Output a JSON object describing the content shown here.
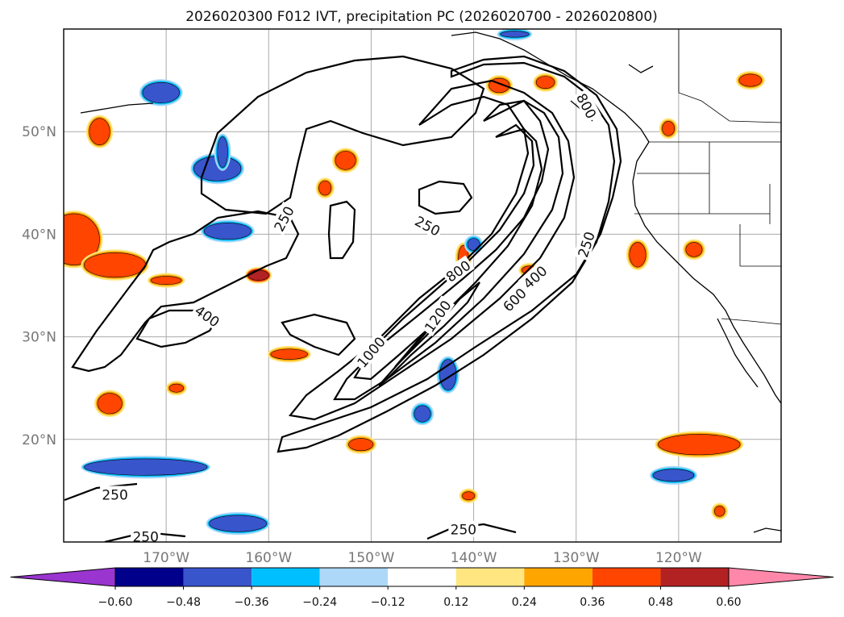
{
  "chart_data": {
    "type": "map-contour",
    "title": "2026020300 F012 IVT, precipitation PC (2026020700 - 2026020800)",
    "map_extent": {
      "lon_min": -180,
      "lon_max": -110,
      "lat_min": 10,
      "lat_max": 60
    },
    "latitude_ticks": [
      {
        "value": 50,
        "label": "50°N"
      },
      {
        "value": 40,
        "label": "40°N"
      },
      {
        "value": 30,
        "label": "30°N"
      },
      {
        "value": 20,
        "label": "20°N"
      }
    ],
    "longitude_ticks": [
      {
        "value": -170,
        "label": "170°W"
      },
      {
        "value": -160,
        "label": "160°W"
      },
      {
        "value": -150,
        "label": "150°W"
      },
      {
        "value": -140,
        "label": "140°W"
      },
      {
        "value": -130,
        "label": "130°W"
      },
      {
        "value": -120,
        "label": "120°W"
      }
    ],
    "grid": true,
    "ivt_contour_levels": [
      250,
      400,
      600,
      800,
      1000,
      1200
    ],
    "contour_labels": [
      {
        "text": "250",
        "lon": -158.5,
        "lat": 41.5,
        "rotate": -62
      },
      {
        "text": "250",
        "lon": -144.5,
        "lat": 40.8,
        "rotate": 28
      },
      {
        "text": "250",
        "lon": -129.0,
        "lat": 39.0,
        "rotate": -72
      },
      {
        "text": "250",
        "lon": -175.0,
        "lat": 14.6,
        "rotate": 0
      },
      {
        "text": "250",
        "lon": -172.0,
        "lat": 10.5,
        "rotate": 0
      },
      {
        "text": "250",
        "lon": -141.0,
        "lat": 11.2,
        "rotate": 0
      },
      {
        "text": "400",
        "lon": -166.0,
        "lat": 32.0,
        "rotate": 35
      },
      {
        "text": "400",
        "lon": -134.0,
        "lat": 35.8,
        "rotate": -42
      },
      {
        "text": "600",
        "lon": -136.0,
        "lat": 33.6,
        "rotate": -45
      },
      {
        "text": "800",
        "lon": -141.5,
        "lat": 36.4,
        "rotate": -35
      },
      {
        "text": "800",
        "lon": -129.0,
        "lat": 52.5,
        "rotate": 62
      },
      {
        "text": "1000",
        "lon": -150.0,
        "lat": 28.5,
        "rotate": -50
      },
      {
        "text": "1200",
        "lon": -143.5,
        "lat": 32.0,
        "rotate": -55
      }
    ],
    "colorbar": {
      "boundaries": [
        -0.6,
        -0.48,
        -0.36,
        -0.24,
        -0.12,
        0.12,
        0.24,
        0.36,
        0.48,
        0.6
      ],
      "tick_labels": [
        "−0.60",
        "−0.48",
        "−0.36",
        "−0.24",
        "−0.12",
        "0.12",
        "0.24",
        "0.36",
        "0.48",
        "0.60"
      ],
      "colors": [
        "#9a35d0",
        "#00008b",
        "#3955cc",
        "#00bfff",
        "#add8f7",
        "#ffffff",
        "#ffe680",
        "#ffa500",
        "#ff4500",
        "#b22222",
        "#ff88aa"
      ],
      "extend": "both"
    },
    "precip_features": [
      {
        "lon": -158.0,
        "lat": 28.3,
        "rx": 1.8,
        "ry": 0.5,
        "color": "#ff4500"
      },
      {
        "lon": -170.0,
        "lat": 35.5,
        "rx": 1.5,
        "ry": 0.4,
        "color": "#ff4500"
      },
      {
        "lon": -175.5,
        "lat": 23.5,
        "rx": 1.2,
        "ry": 1.0,
        "color": "#ff4500"
      },
      {
        "lon": -179.0,
        "lat": 39.5,
        "rx": 2.5,
        "ry": 2.5,
        "color": "#ff4500"
      },
      {
        "lon": -175.0,
        "lat": 37.0,
        "rx": 3.0,
        "ry": 1.2,
        "color": "#ff4500"
      },
      {
        "lon": -176.5,
        "lat": 50.0,
        "rx": 1.0,
        "ry": 1.3,
        "color": "#ff4500"
      },
      {
        "lon": -152.5,
        "lat": 47.2,
        "rx": 1.0,
        "ry": 0.9,
        "color": "#ff4500"
      },
      {
        "lon": -137.5,
        "lat": 54.5,
        "rx": 1.0,
        "ry": 0.7,
        "color": "#ff4500"
      },
      {
        "lon": -133.0,
        "lat": 54.8,
        "rx": 0.9,
        "ry": 0.6,
        "color": "#ff4500"
      },
      {
        "lon": -121.0,
        "lat": 50.3,
        "rx": 0.6,
        "ry": 0.7,
        "color": "#ff4500"
      },
      {
        "lon": -113.0,
        "lat": 55.0,
        "rx": 1.1,
        "ry": 0.6,
        "color": "#ff4500"
      },
      {
        "lon": -118.0,
        "lat": 19.5,
        "rx": 4.0,
        "ry": 1.0,
        "color": "#ff4500"
      },
      {
        "lon": -141.0,
        "lat": 37.7,
        "rx": 0.5,
        "ry": 1.2,
        "color": "#ff4500"
      },
      {
        "lon": -124.0,
        "lat": 38.0,
        "rx": 0.8,
        "ry": 1.2,
        "color": "#ff4500"
      },
      {
        "lon": -118.5,
        "lat": 38.5,
        "rx": 0.8,
        "ry": 0.7,
        "color": "#ff4500"
      },
      {
        "lon": -151.0,
        "lat": 19.5,
        "rx": 1.2,
        "ry": 0.6,
        "color": "#ff4500"
      },
      {
        "lon": -134.5,
        "lat": 36.5,
        "rx": 0.8,
        "ry": 0.4,
        "color": "#ff4500"
      },
      {
        "lon": -140.5,
        "lat": 14.5,
        "rx": 0.6,
        "ry": 0.4,
        "color": "#ff4500"
      },
      {
        "lon": -154.5,
        "lat": 44.5,
        "rx": 0.6,
        "ry": 0.7,
        "color": "#ff4500"
      },
      {
        "lon": -169.0,
        "lat": 25.0,
        "rx": 0.7,
        "ry": 0.4,
        "color": "#ff4500"
      },
      {
        "lon": -116.0,
        "lat": 13.0,
        "rx": 0.5,
        "ry": 0.5,
        "color": "#ff4500"
      },
      {
        "lon": -161.0,
        "lat": 36.0,
        "rx": 1.0,
        "ry": 0.5,
        "color": "#b22222"
      },
      {
        "lon": -164.0,
        "lat": 40.3,
        "rx": 2.3,
        "ry": 0.8,
        "color": "#3955cc"
      },
      {
        "lon": -165.0,
        "lat": 46.4,
        "rx": 2.3,
        "ry": 1.2,
        "color": "#3955cc"
      },
      {
        "lon": -164.5,
        "lat": 48.0,
        "rx": 0.5,
        "ry": 1.5,
        "color": "#3955cc"
      },
      {
        "lon": -170.5,
        "lat": 53.8,
        "rx": 1.8,
        "ry": 1.0,
        "color": "#3955cc"
      },
      {
        "lon": -172.0,
        "lat": 17.3,
        "rx": 6.0,
        "ry": 0.8,
        "color": "#3955cc"
      },
      {
        "lon": -163.0,
        "lat": 11.8,
        "rx": 2.8,
        "ry": 0.8,
        "color": "#3955cc"
      },
      {
        "lon": -142.5,
        "lat": 26.3,
        "rx": 0.8,
        "ry": 1.5,
        "color": "#3955cc"
      },
      {
        "lon": -145.0,
        "lat": 22.5,
        "rx": 0.8,
        "ry": 0.8,
        "color": "#3955cc"
      },
      {
        "lon": -120.5,
        "lat": 16.5,
        "rx": 2.0,
        "ry": 0.6,
        "color": "#3955cc"
      },
      {
        "lon": -136.0,
        "lat": 59.5,
        "rx": 1.4,
        "ry": 0.3,
        "color": "#3955cc"
      },
      {
        "lon": -140.0,
        "lat": 39.0,
        "rx": 0.6,
        "ry": 0.6,
        "color": "#3955cc"
      }
    ]
  }
}
